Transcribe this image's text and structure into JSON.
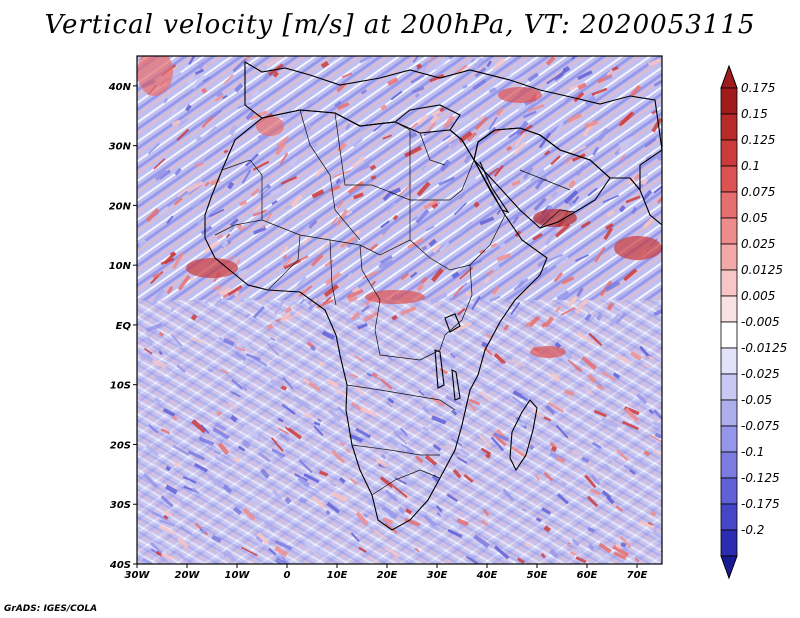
{
  "title": "Vertical velocity [m/s] at 200hPa, VT: 2020053115",
  "credit": "GrADS: IGES/COLA",
  "map": {
    "lon_range": [
      -30,
      75
    ],
    "lat_range": [
      -40,
      45
    ],
    "lon_ticks": [
      {
        "value": -30,
        "label": "30W"
      },
      {
        "value": -20,
        "label": "20W"
      },
      {
        "value": -10,
        "label": "10W"
      },
      {
        "value": 0,
        "label": "0"
      },
      {
        "value": 10,
        "label": "10E"
      },
      {
        "value": 20,
        "label": "20E"
      },
      {
        "value": 30,
        "label": "30E"
      },
      {
        "value": 40,
        "label": "40E"
      },
      {
        "value": 50,
        "label": "50E"
      },
      {
        "value": 60,
        "label": "60E"
      },
      {
        "value": 70,
        "label": "70E"
      }
    ],
    "lat_ticks": [
      {
        "value": 40,
        "label": "40N"
      },
      {
        "value": 30,
        "label": "30N"
      },
      {
        "value": 20,
        "label": "20N"
      },
      {
        "value": 10,
        "label": "10N"
      },
      {
        "value": 0,
        "label": "EQ"
      },
      {
        "value": -10,
        "label": "10S"
      },
      {
        "value": -20,
        "label": "20S"
      },
      {
        "value": -30,
        "label": "30S"
      },
      {
        "value": -40,
        "label": "40S"
      }
    ]
  },
  "colorbar": {
    "levels": [
      {
        "label": "0.175",
        "color": "#a01c1c"
      },
      {
        "label": "0.15",
        "color": "#b82a2a"
      },
      {
        "label": "0.125",
        "color": "#cc3b3b"
      },
      {
        "label": "0.1",
        "color": "#dc5252"
      },
      {
        "label": "0.075",
        "color": "#e66e6e"
      },
      {
        "label": "0.05",
        "color": "#ee8c8c"
      },
      {
        "label": "0.025",
        "color": "#f4a9a9"
      },
      {
        "label": "0.0125",
        "color": "#f8c6c6"
      },
      {
        "label": "0.005",
        "color": "#fbe2e2"
      },
      {
        "label": "-0.005",
        "color": "#ffffff"
      },
      {
        "label": "-0.0125",
        "color": "#e2e2fa"
      },
      {
        "label": "-0.025",
        "color": "#c8c8f4"
      },
      {
        "label": "-0.05",
        "color": "#aeaeef"
      },
      {
        "label": "-0.075",
        "color": "#9595ea"
      },
      {
        "label": "-0.1",
        "color": "#7b7be2"
      },
      {
        "label": "-0.125",
        "color": "#6060d8"
      },
      {
        "label": "-0.175",
        "color": "#4545c8"
      },
      {
        "label": "-0.2",
        "color": "#2c2cb0"
      }
    ],
    "top_color": "#a01c1c",
    "bottom_color": "#1a1a96"
  },
  "field_colors": {
    "positive": [
      "#f8c6c6",
      "#ee8c8c",
      "#e66e6e",
      "#cc3b3b"
    ],
    "negative": [
      "#c8c8f4",
      "#aeaeef",
      "#9595ea",
      "#7b7be2",
      "#6060d8"
    ]
  }
}
